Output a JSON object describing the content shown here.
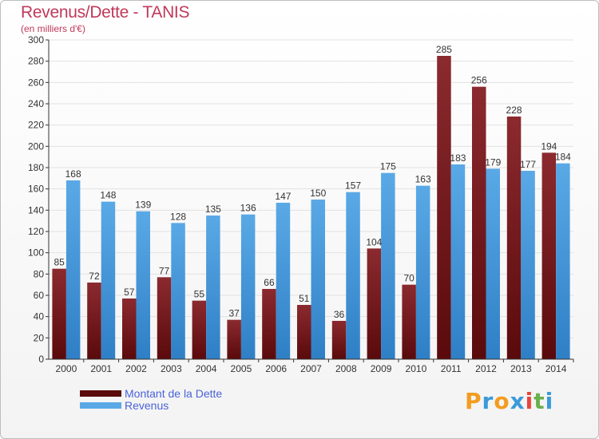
{
  "header": {
    "title": "Revenus/Dette - TANIS",
    "subtitle": "(en milliers d'€)"
  },
  "legend": {
    "debt_label": "Montant de la Dette",
    "revenue_label": "Revenus"
  },
  "logo": {
    "text": "Proxiti",
    "letters": [
      "P",
      "r",
      "o",
      "x",
      "i",
      "t",
      "i"
    ],
    "colors": [
      "#f39c1f",
      "#3a9ad9",
      "#f39c1f",
      "#3a9ad9",
      "#e8463b",
      "#6ab04c",
      "#3a9ad9"
    ]
  },
  "colors": {
    "debt_top": "#8b2a2f",
    "debt_bottom": "#5a0a0c",
    "revenue_top": "#5aa9e6",
    "revenue_bottom": "#2f7fc6",
    "title": "#c0395a",
    "legend_text": "#4a63d8"
  },
  "chart_data": {
    "type": "bar",
    "title": "Revenus/Dette - TANIS",
    "subtitle": "(en milliers d'€)",
    "categories": [
      "2000",
      "2001",
      "2002",
      "2003",
      "2004",
      "2005",
      "2006",
      "2007",
      "2008",
      "2009",
      "2010",
      "2011",
      "2012",
      "2013",
      "2014"
    ],
    "series": [
      {
        "name": "Montant de la Dette",
        "values": [
          85,
          72,
          57,
          77,
          55,
          37,
          66,
          51,
          36,
          104,
          70,
          285,
          256,
          228,
          194
        ]
      },
      {
        "name": "Revenus",
        "values": [
          168,
          148,
          139,
          128,
          135,
          136,
          147,
          150,
          157,
          175,
          163,
          183,
          179,
          177,
          184
        ]
      }
    ],
    "ylim": [
      0,
      300
    ],
    "yticks": [
      0,
      20,
      40,
      60,
      80,
      100,
      120,
      140,
      160,
      180,
      200,
      220,
      240,
      260,
      280,
      300
    ],
    "grid": true,
    "legend_position": "bottom-left"
  }
}
